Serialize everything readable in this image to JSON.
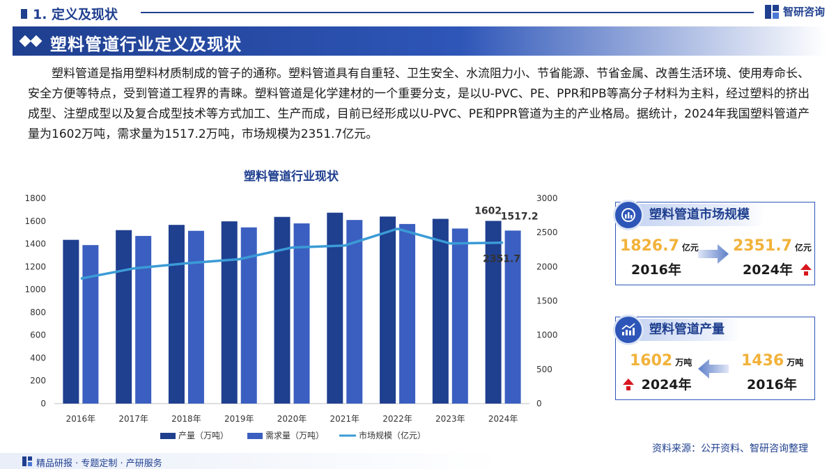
{
  "header": {
    "section_title": "1. 定义及现状",
    "brand_name": "智研咨询",
    "banner_title": "塑料管道行业定义及现状"
  },
  "paragraph": "塑料管道是指用塑料材质制成的管子的通称。塑料管道具有自重轻、卫生安全、水流阻力小、节省能源、节省金属、改善生活环境、使用寿命长、安全方便等特点，受到管道工程界的青睐。塑料管道是化学建材的一个重要分支，是以U-PVC、PE、PPR和PB等高分子材料为主料，经过塑料的挤出成型、注塑成型以及复合成型技术等方式加工、生产而成，目前已经形成以U-PVC、PE和PPR管道为主的产业格局。据统计，2024年我国塑料管道产量为1602万吨，需求量为1517.2万吨，市场规模为2351.7亿元。",
  "chart_data": {
    "type": "bar",
    "title": "塑料管道行业现状",
    "categories": [
      "2016年",
      "2017年",
      "2018年",
      "2019年",
      "2020年",
      "2021年",
      "2022年",
      "2023年",
      "2024年"
    ],
    "series": [
      {
        "name": "产量（万吨）",
        "type": "bar",
        "axis": "left",
        "color": "#1f3f8f",
        "values": [
          1436,
          1521,
          1567,
          1598,
          1637,
          1674,
          1640,
          1620,
          1602
        ]
      },
      {
        "name": "需求量（万吨）",
        "type": "bar",
        "axis": "left",
        "color": "#3b5fc0",
        "values": [
          1390,
          1470,
          1515,
          1545,
          1580,
          1610,
          1575,
          1535,
          1517.2
        ]
      },
      {
        "name": "市场规模（亿元）",
        "type": "line",
        "axis": "right",
        "color": "#3b9bd6",
        "values": [
          1826.7,
          1975,
          2050,
          2110,
          2280,
          2310,
          2555,
          2340,
          2351.7
        ]
      }
    ],
    "y_left": {
      "min": 0,
      "max": 1800,
      "ticks": [
        0,
        200,
        400,
        600,
        800,
        1000,
        1200,
        1400,
        1600,
        1800
      ]
    },
    "y_right": {
      "min": 0,
      "max": 3000,
      "ticks": [
        0,
        500,
        1000,
        1500,
        2000,
        2500,
        3000
      ]
    },
    "annotations": [
      {
        "series": 0,
        "index": 8,
        "text": "1602"
      },
      {
        "series": 1,
        "index": 8,
        "text": "1517.2"
      },
      {
        "series": 2,
        "index": 8,
        "text": "2351.7"
      }
    ],
    "legend_position": "bottom",
    "grid": false
  },
  "cards": {
    "market": {
      "title": "塑料管道市场规模",
      "from_value": "1826.7",
      "from_unit": "亿元",
      "from_year": "2016年",
      "to_value": "2351.7",
      "to_unit": "亿元",
      "to_year": "2024年"
    },
    "output": {
      "title": "塑料管道产量",
      "left_value": "1602",
      "left_unit": "万吨",
      "left_year": "2024年",
      "right_value": "1436",
      "right_unit": "万吨",
      "right_year": "2016年"
    }
  },
  "source": "资料来源：公开资料、智研咨询整理",
  "footer": "精品研报 · 专题定制 · 产研服务",
  "colors": {
    "primary": "#1f3f8f",
    "accent": "#f2b23a",
    "up": "#d7171f"
  }
}
